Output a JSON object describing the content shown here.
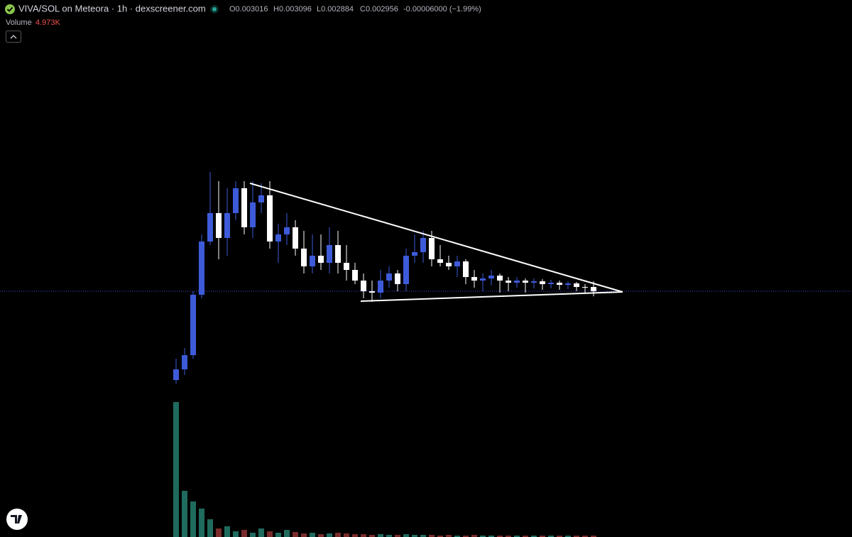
{
  "chart_data": {
    "type": "candlestick",
    "title": "VIVA/SOL on Meteora · 1h · dexscreener.com",
    "ohlc_legend": [
      "O0.003016",
      "H0.003096",
      "L0.002884",
      "C0.002956",
      "-0.00006000 (−1.99%)"
    ],
    "volume_title": "Volume",
    "volume_value_label": "4.973K",
    "up_color": "#3d5bd9",
    "down_color": "#ffffff",
    "volume_up_color": "#1f6b5e",
    "volume_down_color": "#7a2b2b",
    "ylim": [
      0.0016,
      0.0047
    ],
    "volume_ylim": [
      0,
      500000
    ],
    "open": [
      0.001706,
      0.001856,
      0.002056,
      0.002906,
      0.003656,
      0.004056,
      0.003706,
      0.004056,
      0.004406,
      0.003856,
      0.004206,
      0.004306,
      0.003656,
      0.003756,
      0.003856,
      0.003556,
      0.003306,
      0.003456,
      0.003356,
      0.003606,
      0.003356,
      0.003256,
      0.003106,
      0.002956,
      0.002936,
      0.003106,
      0.003206,
      0.003056,
      0.003456,
      0.003506,
      0.003706,
      0.003406,
      0.003356,
      0.003306,
      0.003376,
      0.003156,
      0.003106,
      0.003136,
      0.003176,
      0.003106,
      0.003076,
      0.003106,
      0.003076,
      0.003096,
      0.003056,
      0.003076,
      0.003046,
      0.003066,
      0.003016,
      0.003016
    ],
    "high": [
      0.002006,
      0.002156,
      0.002956,
      0.003756,
      0.004636,
      0.004506,
      0.004406,
      0.004506,
      0.004506,
      0.004506,
      0.004476,
      0.004506,
      0.003906,
      0.004056,
      0.003956,
      0.003806,
      0.003756,
      0.003756,
      0.003856,
      0.003806,
      0.003606,
      0.003356,
      0.003206,
      0.003106,
      0.003256,
      0.003306,
      0.003256,
      0.003556,
      0.003756,
      0.003806,
      0.003806,
      0.003606,
      0.003456,
      0.003456,
      0.003406,
      0.003256,
      0.003206,
      0.003256,
      0.003206,
      0.003156,
      0.003156,
      0.003136,
      0.003136,
      0.003126,
      0.003116,
      0.003106,
      0.003096,
      0.003086,
      0.003056,
      0.003096
    ],
    "low": [
      0.001656,
      0.001776,
      0.002006,
      0.002856,
      0.003606,
      0.003406,
      0.003456,
      0.003956,
      0.003756,
      0.003706,
      0.004056,
      0.003556,
      0.003356,
      0.003606,
      0.003456,
      0.003206,
      0.003206,
      0.003256,
      0.003206,
      0.003206,
      0.003106,
      0.003056,
      0.002856,
      0.002806,
      0.002856,
      0.003006,
      0.002956,
      0.002956,
      0.003356,
      0.003356,
      0.003306,
      0.003306,
      0.003256,
      0.003156,
      0.003056,
      0.003006,
      0.002956,
      0.003036,
      0.002936,
      0.002956,
      0.003006,
      0.002936,
      0.002996,
      0.002976,
      0.002996,
      0.002976,
      0.002986,
      0.002956,
      0.002936,
      0.002884
    ],
    "close": [
      0.001856,
      0.002056,
      0.002906,
      0.003656,
      0.004056,
      0.003706,
      0.004056,
      0.004406,
      0.003856,
      0.004206,
      0.004306,
      0.003656,
      0.003756,
      0.003856,
      0.003556,
      0.003306,
      0.003456,
      0.003356,
      0.003606,
      0.003356,
      0.003256,
      0.003106,
      0.002956,
      0.002936,
      0.003106,
      0.003206,
      0.003056,
      0.003456,
      0.003506,
      0.003706,
      0.003406,
      0.003356,
      0.003306,
      0.003376,
      0.003156,
      0.003106,
      0.003136,
      0.003176,
      0.003106,
      0.003076,
      0.003106,
      0.003076,
      0.003096,
      0.003056,
      0.003076,
      0.003046,
      0.003066,
      0.003016,
      0.003006,
      0.002956
    ],
    "volume": [
      475000,
      162500,
      125000,
      100000,
      62500,
      30000,
      37500,
      20000,
      25000,
      15000,
      30000,
      20000,
      15000,
      25000,
      17500,
      12500,
      15000,
      10000,
      12500,
      15000,
      12500,
      10000,
      10000,
      7500,
      10000,
      7500,
      7500,
      10000,
      7500,
      7500,
      7500,
      5000,
      7500,
      5000,
      5000,
      7500,
      5000,
      5000,
      5000,
      5000,
      5000,
      5000,
      5000,
      5000,
      5000,
      5000,
      5000,
      5000,
      5000,
      4973
    ]
  }
}
